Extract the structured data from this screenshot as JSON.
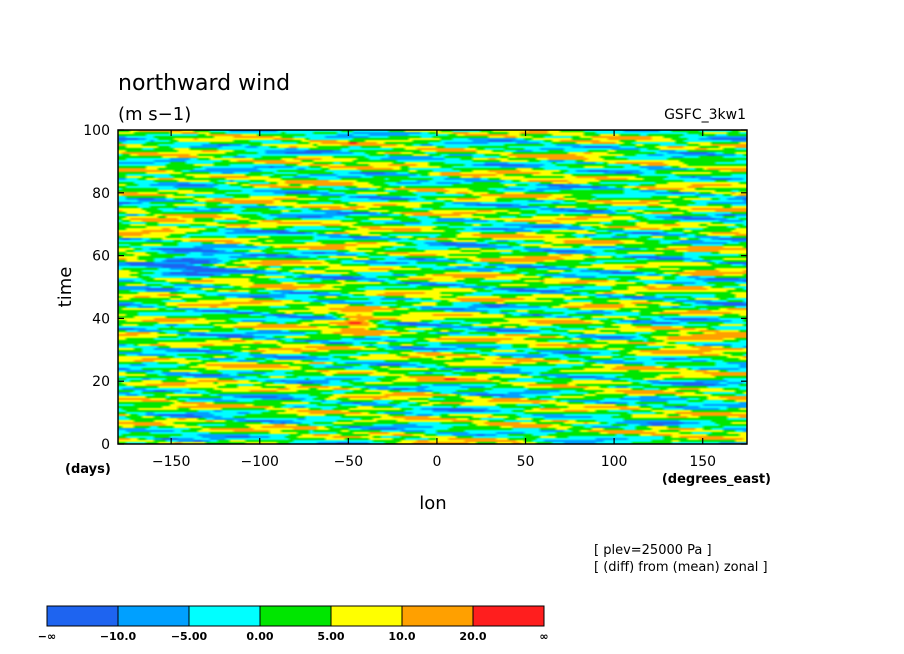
{
  "chart_data": {
    "type": "heatmap",
    "title": "northward wind",
    "units": "(m s−1)",
    "dataset": "GSFC_3kw1",
    "xlabel": "lon",
    "ylabel": "time",
    "x_units": "(degrees_east)",
    "y_units": "(days)",
    "xlim": [
      -180,
      175
    ],
    "ylim": [
      0,
      100
    ],
    "x_ticks": [
      -150,
      -100,
      -50,
      0,
      50,
      100,
      150
    ],
    "y_ticks": [
      0,
      20,
      40,
      60,
      80,
      100
    ],
    "notes": [
      "[ plev=25000 Pa ]",
      "[ (diff) from (mean) zonal ]"
    ],
    "levels": [
      "−∞",
      "−10.0",
      "−5.00",
      "0.00",
      "5.00",
      "10.0",
      "20.0",
      "∞"
    ],
    "colors": [
      "#1e64f0",
      "#00a0ff",
      "#00ffff",
      "#00e600",
      "#ffff00",
      "#ffa000",
      "#ff1e1e"
    ],
    "grid": false,
    "legend": "bottom-left colorbar"
  }
}
